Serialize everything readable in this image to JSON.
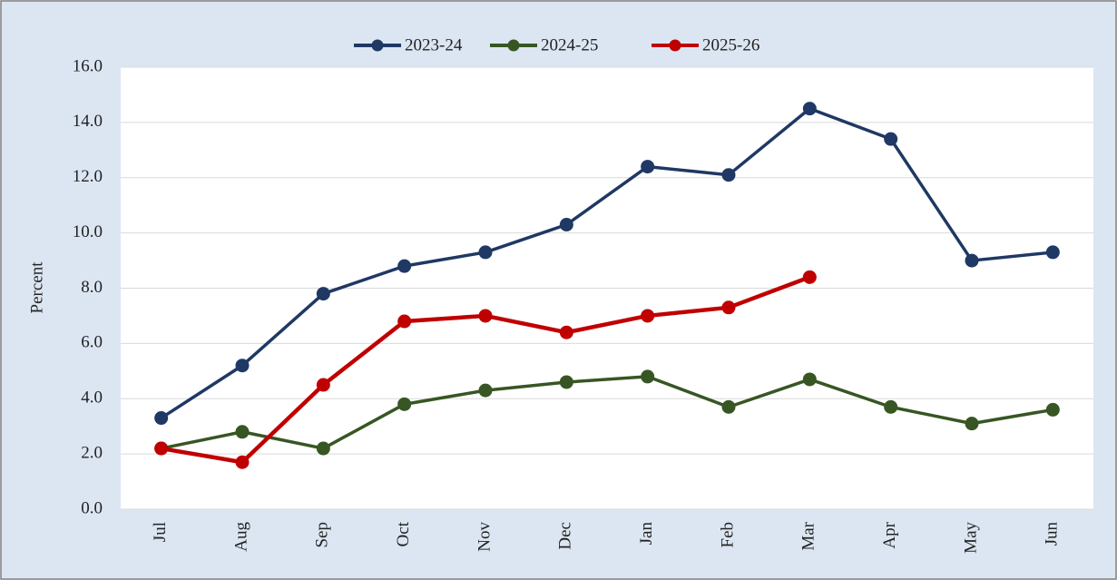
{
  "chart_data": {
    "type": "line",
    "y_label": "Percent",
    "categories": [
      "Jul",
      "Aug",
      "Sep",
      "Oct",
      "Nov",
      "Dec",
      "Jan",
      "Feb",
      "Mar",
      "Apr",
      "May",
      "Jun"
    ],
    "series": [
      {
        "name": "2023-24",
        "color": "#1f3864",
        "values": [
          3.3,
          5.2,
          7.8,
          8.8,
          9.3,
          10.3,
          12.4,
          12.1,
          14.5,
          13.4,
          9.0,
          9.3
        ]
      },
      {
        "name": "2024-25",
        "color": "#375623",
        "values": [
          2.2,
          2.8,
          2.2,
          3.8,
          4.3,
          4.6,
          4.8,
          3.7,
          4.7,
          3.7,
          3.1,
          3.6
        ]
      },
      {
        "name": "2025-26",
        "color": "#c00000",
        "values": [
          2.2,
          1.7,
          4.5,
          6.8,
          7.0,
          6.4,
          7.0,
          7.3,
          8.4,
          null,
          null,
          null
        ]
      }
    ],
    "ylim": [
      0,
      16
    ],
    "yticks": [
      {
        "value": 0,
        "label": "0.0"
      },
      {
        "value": 2,
        "label": "2.0"
      },
      {
        "value": 4,
        "label": "4.0"
      },
      {
        "value": 6,
        "label": "6.0"
      },
      {
        "value": 8,
        "label": "8.0"
      },
      {
        "value": 10,
        "label": "10.0"
      },
      {
        "value": 12,
        "label": "12.0"
      },
      {
        "value": 14,
        "label": "14.0"
      },
      {
        "value": 16,
        "label": "16.0"
      }
    ],
    "grid": true,
    "legend": "top"
  }
}
